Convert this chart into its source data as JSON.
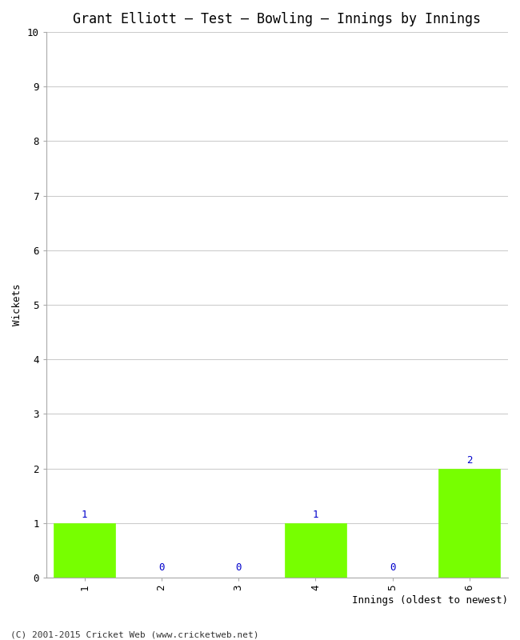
{
  "title": "Grant Elliott – Test – Bowling – Innings by Innings",
  "xlabel": "Innings (oldest to newest)",
  "ylabel": "Wickets",
  "categories": [
    "1",
    "2",
    "3",
    "4",
    "5",
    "6"
  ],
  "values": [
    1,
    0,
    0,
    1,
    0,
    2
  ],
  "bar_color": "#77ff00",
  "bar_edge_color": "#77ff00",
  "label_color": "#0000cc",
  "ylim": [
    0,
    10
  ],
  "yticks": [
    0,
    1,
    2,
    3,
    4,
    5,
    6,
    7,
    8,
    9,
    10
  ],
  "background_color": "#ffffff",
  "grid_color": "#cccccc",
  "title_fontsize": 12,
  "axis_label_fontsize": 9,
  "tick_fontsize": 9,
  "bar_label_fontsize": 9,
  "footer_text": "(C) 2001-2015 Cricket Web (www.cricketweb.net)",
  "footer_fontsize": 8
}
